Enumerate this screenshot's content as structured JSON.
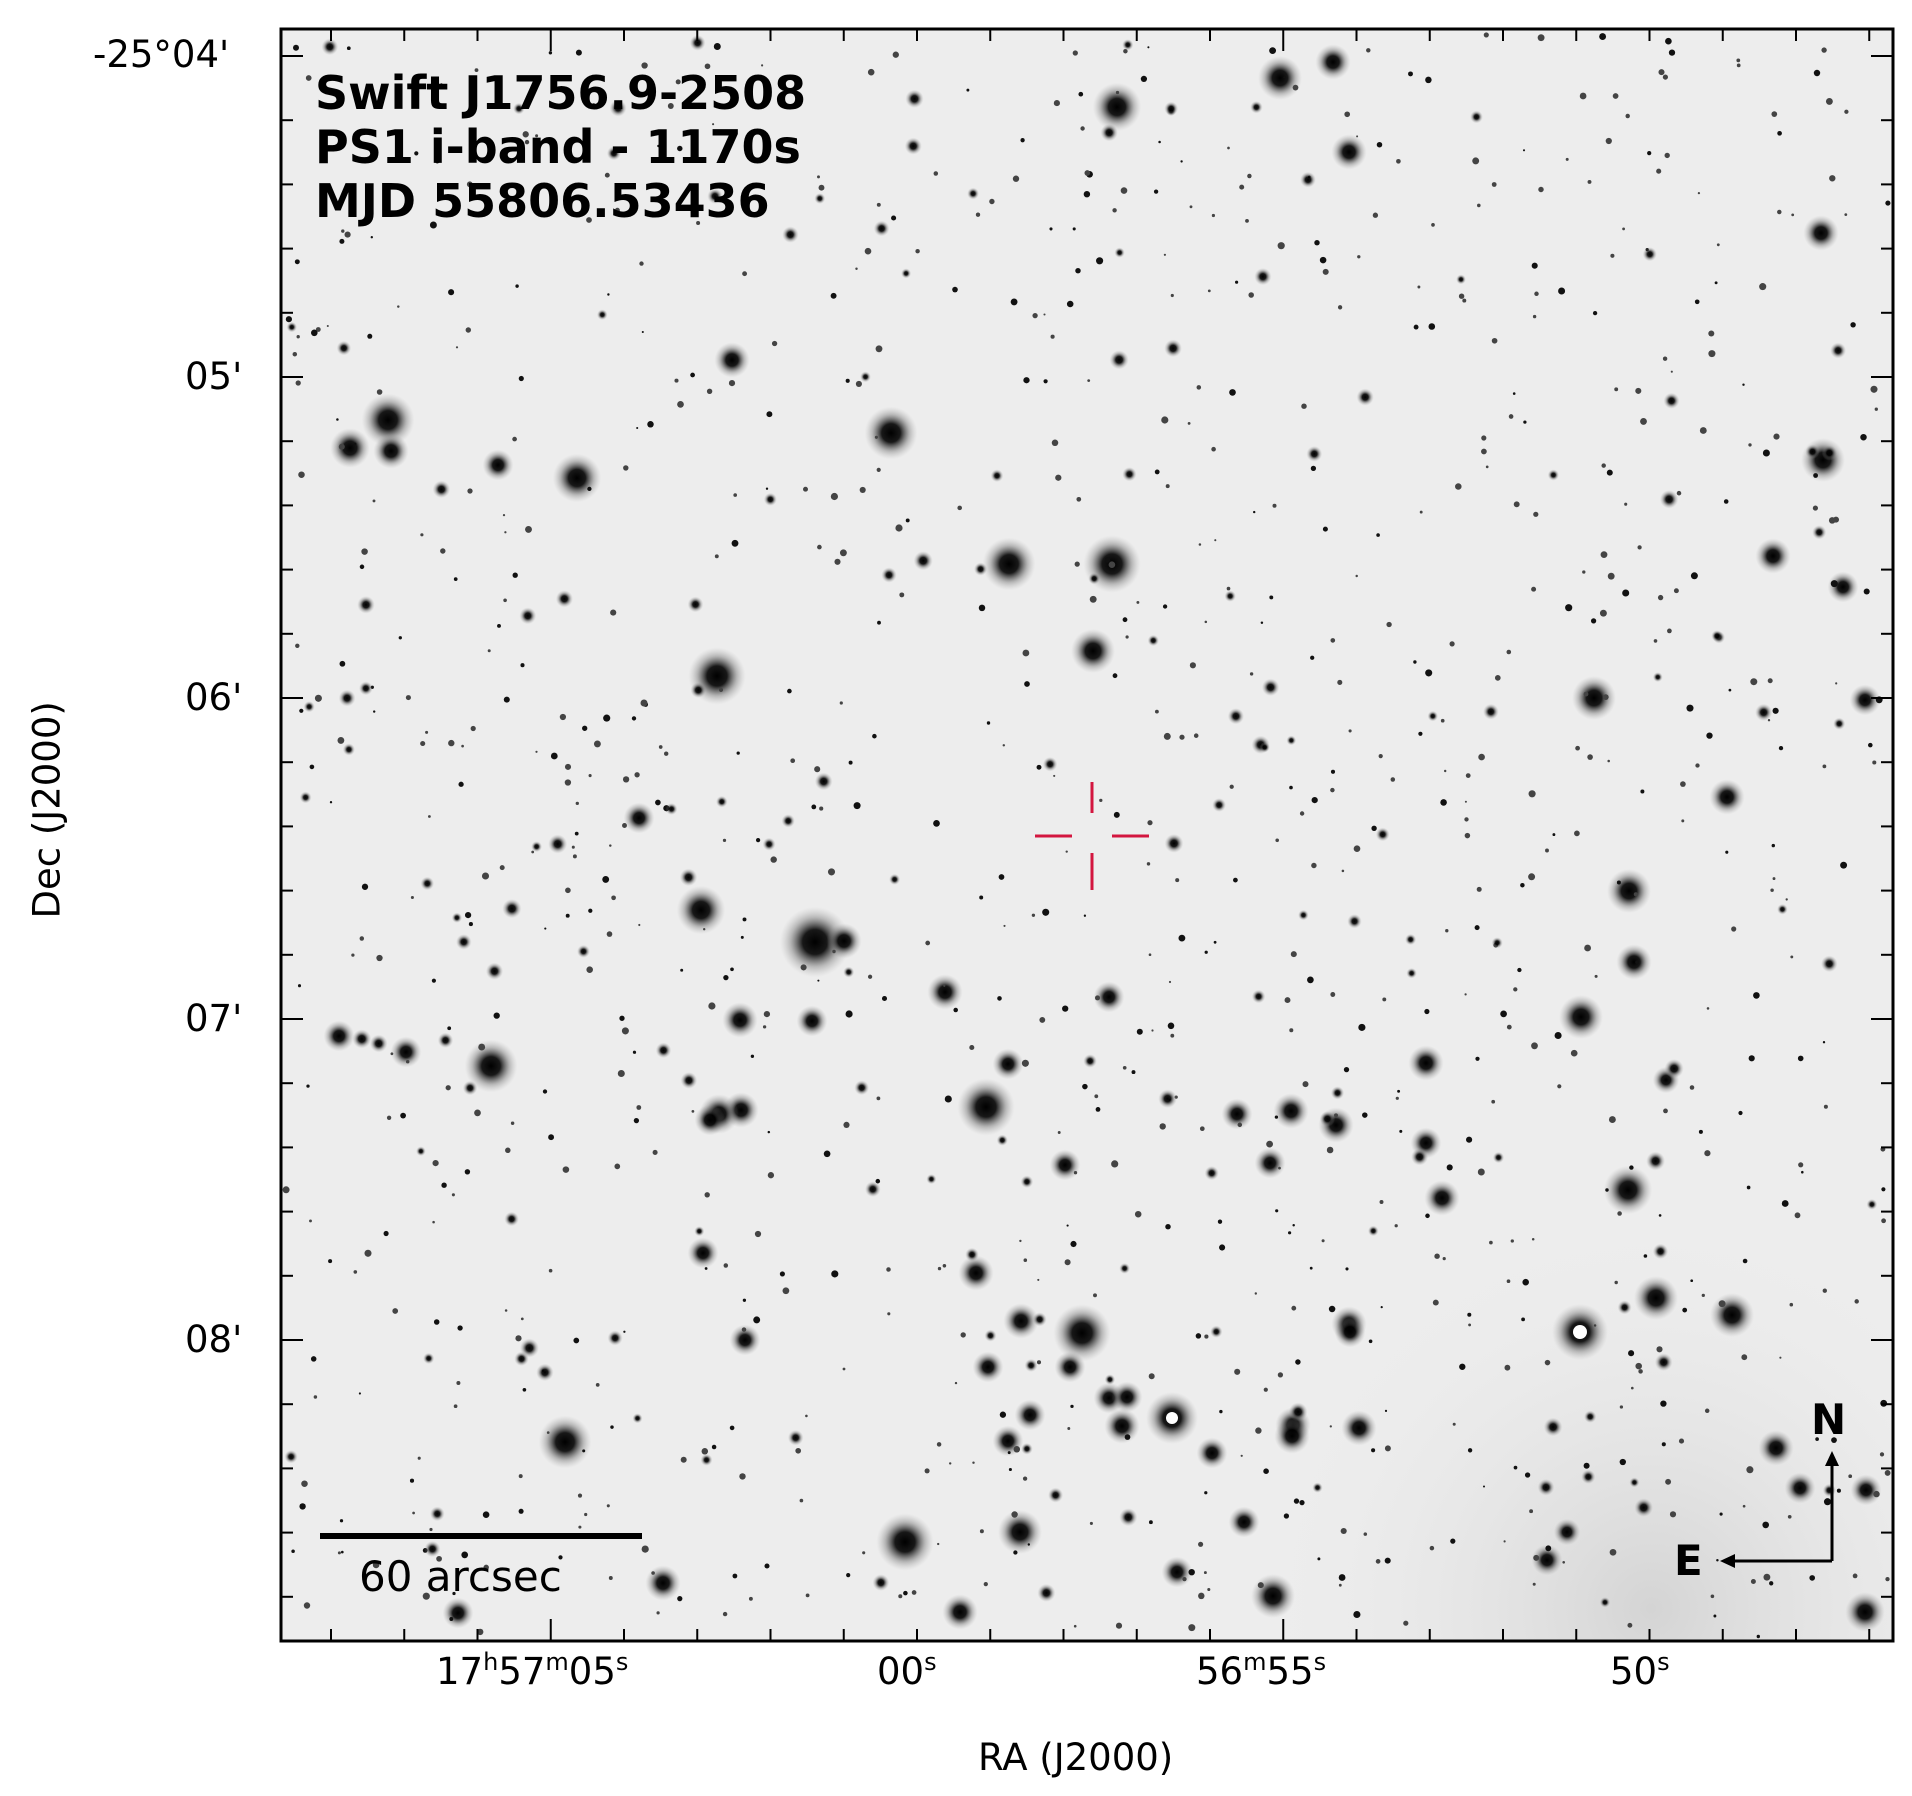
{
  "image": {
    "subject": "Swift J1756.9-2508",
    "annotation_lines": [
      "Swift J1756.9-2508",
      "PS1 i-band - 1170s",
      "MJD 55806.53436"
    ],
    "background_color": "#ededed",
    "marker_color": "#d3163f"
  },
  "axes": {
    "x_title": "RA (J2000)",
    "y_title": "Dec (J2000)",
    "x_ticks": [
      {
        "h": "17",
        "h_u": "h",
        "m": "57",
        "m_u": "m",
        "s": "05",
        "s_u": "s"
      },
      {
        "s": "00",
        "s_u": "s"
      },
      {
        "m": "56",
        "m_u": "m",
        "s": "55",
        "s_u": "s"
      },
      {
        "s": "50",
        "s_u": "s"
      }
    ],
    "y_ticks": [
      "-25°04'",
      "05'",
      "06'",
      "07'",
      "08'"
    ]
  },
  "scale_bar": {
    "label": "60 arcsec"
  },
  "compass": {
    "north": "N",
    "east": "E"
  }
}
